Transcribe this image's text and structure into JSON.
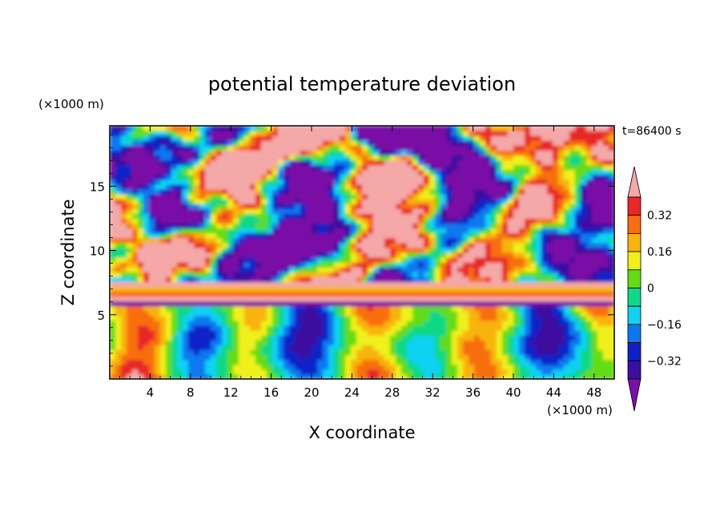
{
  "chart_data": {
    "type": "heatmap",
    "title": "potential temperature deviation",
    "xlabel": "X coordinate",
    "ylabel": "Z coordinate",
    "x_unit": "(×1000 m)",
    "y_unit": "(×1000 m)",
    "time_label": "t=86400 s",
    "xlim": [
      0,
      50
    ],
    "ylim": [
      0,
      19.7
    ],
    "x_ticks": [
      4,
      8,
      12,
      16,
      20,
      24,
      28,
      32,
      36,
      40,
      44,
      48
    ],
    "y_ticks": [
      5,
      10,
      15
    ],
    "colorbar": {
      "levels": [
        -0.4,
        -0.32,
        -0.24,
        -0.16,
        -0.08,
        0,
        0.08,
        0.16,
        0.24,
        0.32,
        0.4
      ],
      "labeled_values": [
        "0.32",
        "0.16",
        "0",
        "−0.16",
        "−0.32"
      ],
      "colors": [
        "#7a10a6",
        "#3c0fa0",
        "#1020c8",
        "#0a78f0",
        "#10d2f2",
        "#10d884",
        "#64dc14",
        "#f0f01c",
        "#f8b40c",
        "#f86e10",
        "#e82828",
        "#f4a8a8"
      ],
      "extend": "both"
    },
    "description_bands": [
      {
        "z_range": [
          0,
          5.8
        ],
        "pattern": "oscillating turbulent field, mixed warm (red/orange) and cool (green/blue) cells"
      },
      {
        "z_range": [
          5.8,
          7.6
        ],
        "pattern": "horizontal stripes: pink, orange, yellow, green"
      },
      {
        "z_range": [
          7.6,
          19.7
        ],
        "pattern": "large purple (cold) and pink (warm) patches"
      }
    ]
  }
}
